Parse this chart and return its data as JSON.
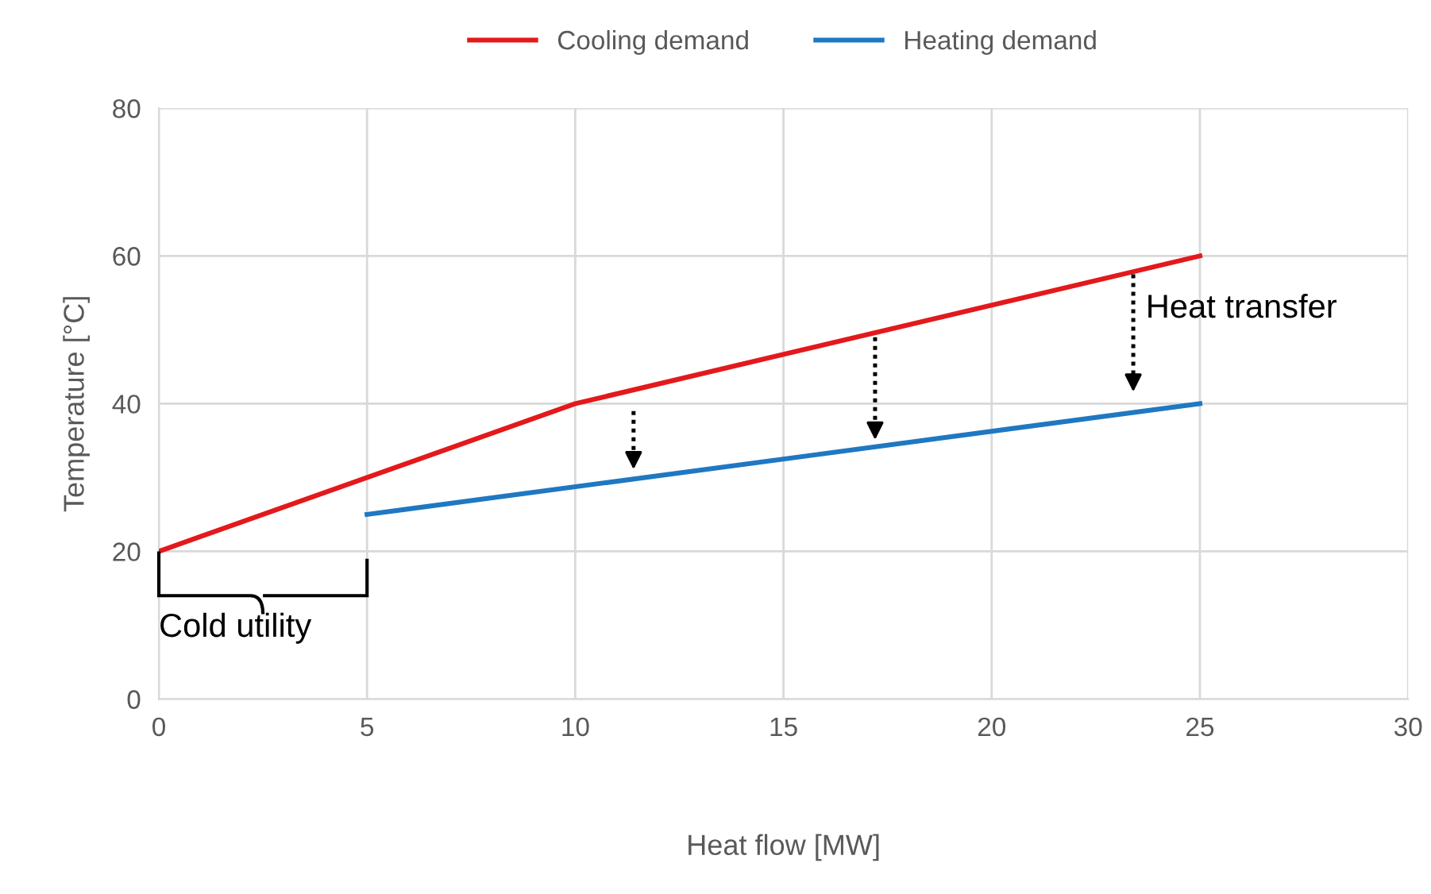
{
  "chart_data": {
    "type": "line",
    "xlabel": "Heat flow [MW]",
    "ylabel": "Temperature [°C]",
    "series": [
      {
        "name": "Cooling demand",
        "color": "#e3191c",
        "x": [
          0,
          10,
          25
        ],
        "values": [
          20,
          40,
          60
        ]
      },
      {
        "name": "Heating demand",
        "color": "#1f78c1",
        "x": [
          5,
          25
        ],
        "values": [
          25,
          40
        ]
      }
    ],
    "xlim": [
      0,
      30
    ],
    "xticks": [
      0,
      5,
      10,
      15,
      20,
      25,
      30
    ],
    "ylim": [
      0,
      80
    ],
    "yticks": [
      0,
      20,
      40,
      60,
      80
    ],
    "grid": true,
    "legend": "top",
    "marker": "none",
    "line_style": "solid",
    "annotations": [
      "Heat transfer",
      "Cold utility"
    ]
  }
}
